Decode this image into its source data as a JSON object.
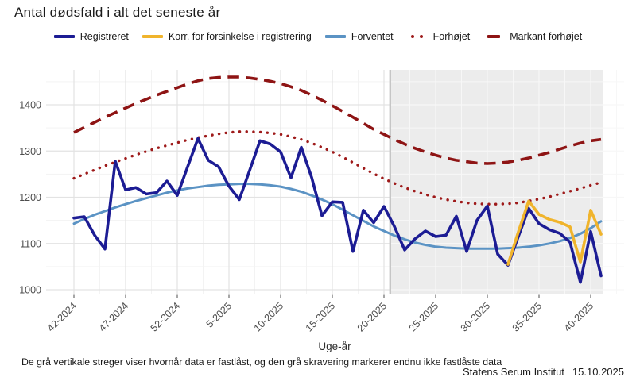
{
  "title": "Antal dødsfald i alt det seneste år",
  "footer_note": "De grå vertikale streger viser hvornår data er fastlåst, og den grå skravering markerer endnu ikke fastlåste data",
  "source": "Statens Serum Institut",
  "date": "15.10.2025",
  "colors": {
    "registered": "#1c1c94",
    "corrected": "#f0b42c",
    "expected": "#5b93c4",
    "elevated": "#9e1a1a",
    "markedly_elevated": "#8e1414",
    "shading": "#ececec",
    "locked_vline": "#c6c6c6",
    "grid_major": "#e3e3e3",
    "grid_minor": "#f3f3f3",
    "grid_in_shade": "#f7f7f7",
    "tick_text": "#4d4d4d"
  },
  "chart_data": {
    "type": "line",
    "title": "Antal dødsfald i alt det seneste år",
    "xlabel": "Uge-år",
    "ylabel": "",
    "ylim": [
      990,
      1476
    ],
    "yticks": [
      1000,
      1100,
      1200,
      1300,
      1400
    ],
    "grid": true,
    "legend_position": "top",
    "xtick_indices": [
      0,
      5,
      10,
      15,
      20,
      25,
      30,
      35,
      40,
      45,
      50
    ],
    "locked_vline_week_index": 30.6,
    "shaded_region": {
      "from_week_index": 30.6,
      "to_week_index": 51,
      "meaning": "endnu ikke fastlåste data"
    },
    "weeks": [
      "42-2024",
      "43-2024",
      "44-2024",
      "45-2024",
      "46-2024",
      "47-2024",
      "48-2024",
      "49-2024",
      "50-2024",
      "51-2024",
      "52-2024",
      "1-2025",
      "2-2025",
      "3-2025",
      "4-2025",
      "5-2025",
      "6-2025",
      "7-2025",
      "8-2025",
      "9-2025",
      "10-2025",
      "11-2025",
      "12-2025",
      "13-2025",
      "14-2025",
      "15-2025",
      "16-2025",
      "17-2025",
      "18-2025",
      "19-2025",
      "20-2025",
      "21-2025",
      "22-2025",
      "23-2025",
      "24-2025",
      "25-2025",
      "26-2025",
      "27-2025",
      "28-2025",
      "29-2025",
      "30-2025",
      "31-2025",
      "32-2025",
      "33-2025",
      "34-2025",
      "35-2025",
      "36-2025",
      "37-2025",
      "38-2025",
      "39-2025",
      "40-2025",
      "41-2025"
    ],
    "series": [
      {
        "name": "Registreret",
        "color": "#1c1c94",
        "style": "solid",
        "width": 3.6,
        "values": [
          1155,
          1158,
          1118,
          1088,
          1278,
          1216,
          1221,
          1207,
          1210,
          1235,
          1204,
          1266,
          1327,
          1280,
          1266,
          1224,
          1195,
          1258,
          1322,
          1315,
          1298,
          1242,
          1308,
          1243,
          1160,
          1190,
          1189,
          1083,
          1172,
          1145,
          1180,
          1137,
          1086,
          1110,
          1127,
          1115,
          1118,
          1159,
          1083,
          1150,
          1181,
          1077,
          1053,
          1115,
          1176,
          1143,
          1130,
          1122,
          1103,
          1016,
          1126,
          1030
        ]
      },
      {
        "name": "Korr. for forsinkelse i registrering",
        "color": "#f0b42c",
        "style": "solid",
        "width": 3.6,
        "values": [
          null,
          null,
          null,
          null,
          null,
          null,
          null,
          null,
          null,
          null,
          null,
          null,
          null,
          null,
          null,
          null,
          null,
          null,
          null,
          null,
          null,
          null,
          null,
          null,
          null,
          null,
          null,
          null,
          null,
          null,
          null,
          null,
          null,
          null,
          null,
          null,
          null,
          null,
          null,
          null,
          null,
          null,
          1055,
          1125,
          1192,
          1163,
          1152,
          1146,
          1136,
          1060,
          1172,
          1120
        ]
      },
      {
        "name": "Forventet",
        "color": "#5b93c4",
        "style": "solid",
        "width": 3,
        "values": [
          1143,
          1153,
          1162,
          1170,
          1178,
          1185,
          1192,
          1198,
          1204,
          1210,
          1215,
          1219,
          1222,
          1225,
          1227,
          1228,
          1229,
          1229,
          1228,
          1226,
          1223,
          1218,
          1212,
          1204,
          1195,
          1185,
          1173,
          1161,
          1149,
          1137,
          1127,
          1117,
          1109,
          1102,
          1097,
          1093,
          1091,
          1090,
          1089,
          1089,
          1089,
          1089,
          1090,
          1091,
          1093,
          1096,
          1100,
          1105,
          1112,
          1121,
          1133,
          1148
        ]
      },
      {
        "name": "Forhøjet",
        "color": "#9e1a1a",
        "style": "dotted",
        "width": 3.4,
        "values": [
          1241,
          1250,
          1259,
          1268,
          1276,
          1284,
          1292,
          1299,
          1306,
          1312,
          1318,
          1324,
          1329,
          1333,
          1337,
          1340,
          1342,
          1342,
          1341,
          1339,
          1336,
          1331,
          1325,
          1317,
          1308,
          1298,
          1287,
          1275,
          1263,
          1251,
          1240,
          1230,
          1221,
          1213,
          1206,
          1200,
          1195,
          1191,
          1188,
          1186,
          1185,
          1185,
          1186,
          1188,
          1192,
          1196,
          1201,
          1207,
          1213,
          1219,
          1226,
          1232
        ]
      },
      {
        "name": "Markant forhøjet",
        "color": "#8e1414",
        "style": "dashed",
        "width": 3.6,
        "values": [
          1340,
          1351,
          1362,
          1373,
          1383,
          1393,
          1403,
          1412,
          1421,
          1429,
          1437,
          1445,
          1452,
          1457,
          1459,
          1460,
          1460,
          1458,
          1455,
          1451,
          1446,
          1439,
          1431,
          1421,
          1410,
          1398,
          1386,
          1373,
          1360,
          1347,
          1336,
          1325,
          1315,
          1306,
          1298,
          1291,
          1285,
          1280,
          1277,
          1274,
          1273,
          1274,
          1276,
          1280,
          1285,
          1291,
          1297,
          1304,
          1311,
          1317,
          1322,
          1325
        ]
      }
    ]
  }
}
